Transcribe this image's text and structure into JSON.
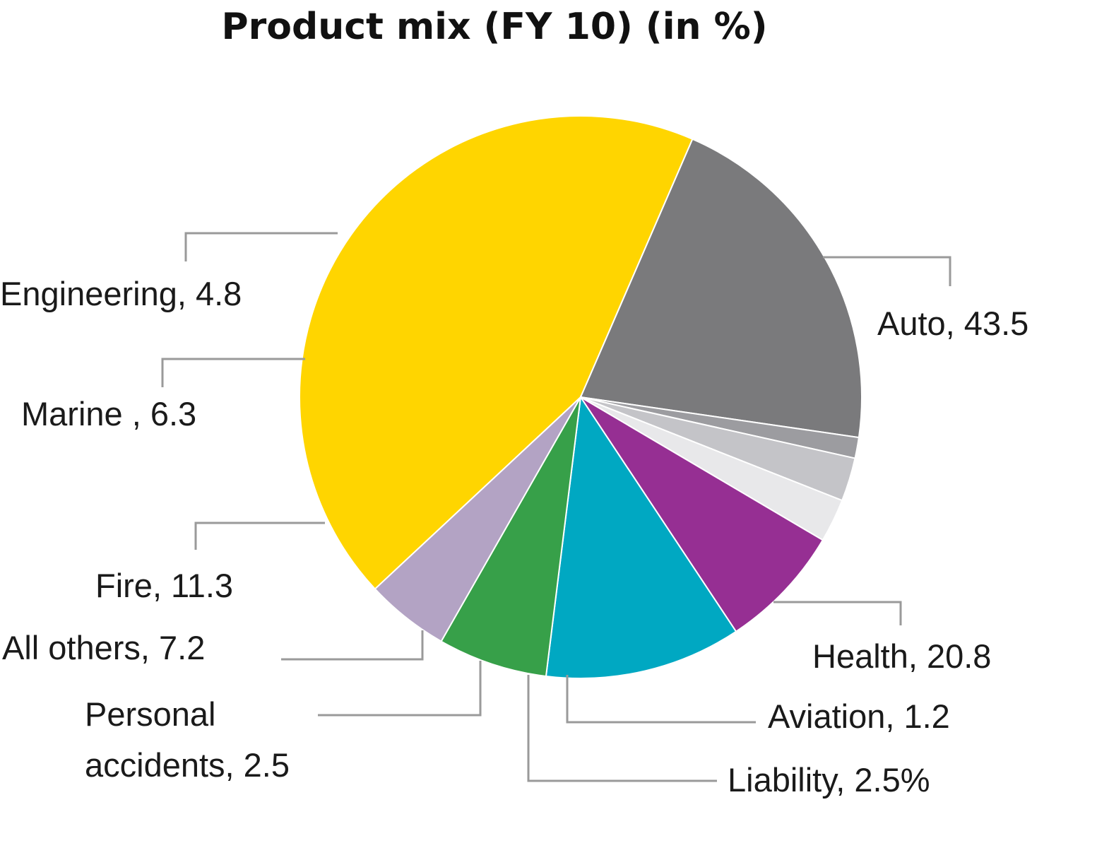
{
  "chart_data": {
    "type": "pie",
    "title": "Product mix (FY 10) (in %)",
    "slices": [
      {
        "label": "Auto, 43.5",
        "name": "Auto",
        "value": 43.5,
        "color": "#FFD500"
      },
      {
        "label": "Health, 20.8",
        "name": "Health",
        "value": 20.8,
        "color": "#7A7A7C"
      },
      {
        "label": "Aviation, 1.2",
        "name": "Aviation",
        "value": 1.2,
        "color": "#9C9CA0"
      },
      {
        "label": "Liability, 2.5%",
        "name": "Liability",
        "value": 2.5,
        "color": "#C4C4C8"
      },
      {
        "label": "Personal accidents, 2.5",
        "name": "Personal accidents",
        "value": 2.5,
        "color": "#E8E8EA"
      },
      {
        "label": "All others, 7.2",
        "name": "All others",
        "value": 7.2,
        "color": "#962F93"
      },
      {
        "label": "Fire, 11.3",
        "name": "Fire",
        "value": 11.3,
        "color": "#00A8C2"
      },
      {
        "label": "Marine , 6.3",
        "name": "Marine",
        "value": 6.3,
        "color": "#37A049"
      },
      {
        "label": "Engineering, 4.8",
        "name": "Engineering",
        "value": 4.8,
        "color": "#B3A3C4"
      }
    ]
  }
}
